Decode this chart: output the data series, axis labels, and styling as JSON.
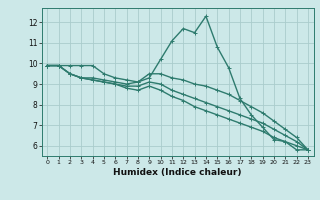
{
  "xlabel": "Humidex (Indice chaleur)",
  "bg_color": "#cce8e8",
  "grid_color": "#aacccc",
  "line_color": "#2e7b6e",
  "xlim": [
    -0.5,
    23.5
  ],
  "ylim": [
    5.5,
    12.7
  ],
  "xticks": [
    0,
    1,
    2,
    3,
    4,
    5,
    6,
    7,
    8,
    9,
    10,
    11,
    12,
    13,
    14,
    15,
    16,
    17,
    18,
    19,
    20,
    21,
    22,
    23
  ],
  "yticks": [
    6,
    7,
    8,
    9,
    10,
    11,
    12
  ],
  "series": [
    [
      9.9,
      9.9,
      9.9,
      9.9,
      9.9,
      9.5,
      9.3,
      9.2,
      9.1,
      9.3,
      10.2,
      11.1,
      11.7,
      11.5,
      12.3,
      10.8,
      9.8,
      8.3,
      7.5,
      6.9,
      6.3,
      6.2,
      5.8,
      5.8
    ],
    [
      9.9,
      9.9,
      9.5,
      9.3,
      9.3,
      9.2,
      9.1,
      9.0,
      9.1,
      9.5,
      9.5,
      9.3,
      9.2,
      9.0,
      8.9,
      8.7,
      8.5,
      8.2,
      7.9,
      7.6,
      7.2,
      6.8,
      6.4,
      5.8
    ],
    [
      9.9,
      9.9,
      9.5,
      9.3,
      9.2,
      9.1,
      9.0,
      8.9,
      8.9,
      9.1,
      9.0,
      8.7,
      8.5,
      8.3,
      8.1,
      7.9,
      7.7,
      7.5,
      7.3,
      7.1,
      6.8,
      6.5,
      6.2,
      5.8
    ],
    [
      9.9,
      9.9,
      9.5,
      9.3,
      9.2,
      9.1,
      9.0,
      8.8,
      8.7,
      8.9,
      8.7,
      8.4,
      8.2,
      7.9,
      7.7,
      7.5,
      7.3,
      7.1,
      6.9,
      6.7,
      6.4,
      6.2,
      6.0,
      5.8
    ]
  ]
}
